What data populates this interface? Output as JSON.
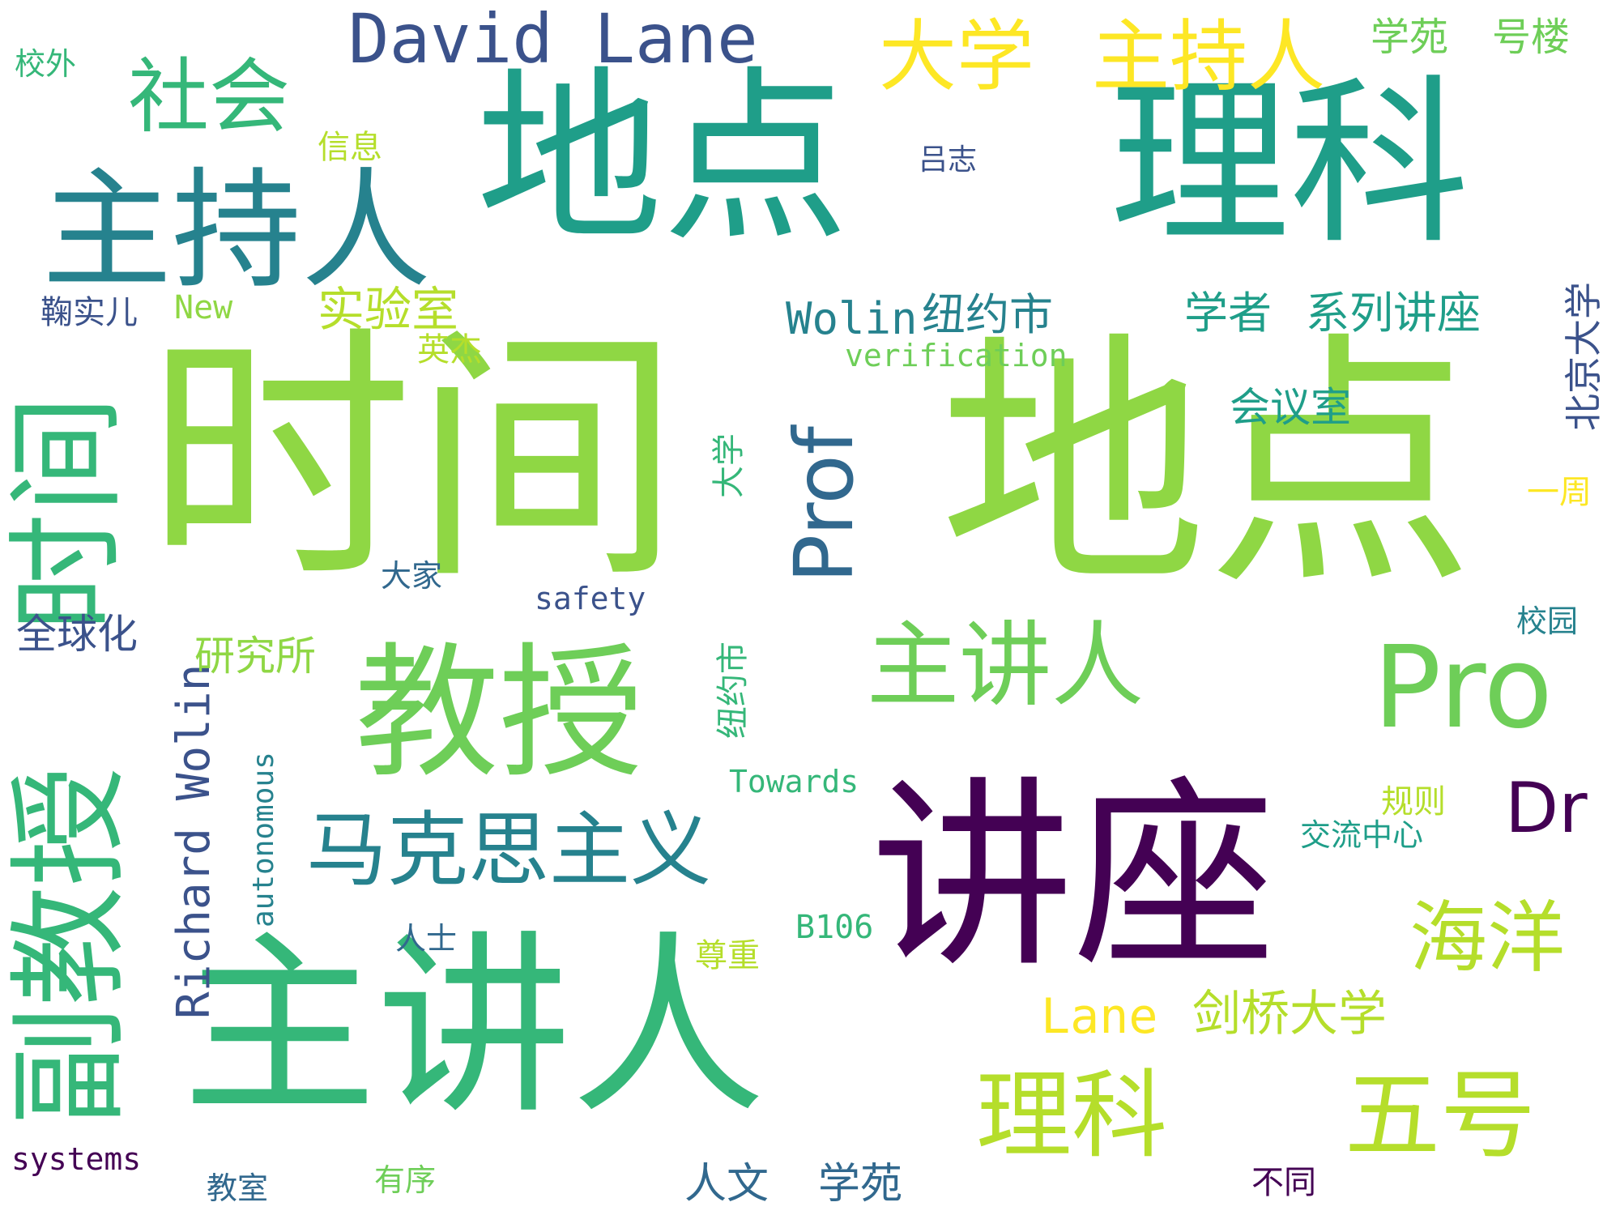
{
  "palette": {
    "dark_purple": "#440154",
    "indigo": "#3b528b",
    "slate_blue": "#31688e",
    "teal_blue": "#26828e",
    "teal": "#1f9e89",
    "sea_green": "#35b779",
    "green": "#6ece58",
    "lime": "#8fd744",
    "yellow_green": "#b5de2b",
    "yellow": "#fde725"
  },
  "words": [
    "地点",
    "理科",
    "时间",
    "地点",
    "主讲人",
    "讲座",
    "教授",
    "主持人",
    "副教授",
    "时间",
    "Pro",
    "Prof",
    "David Lane",
    "社会",
    "大学",
    "主持人",
    "主讲人",
    "马克思主义",
    "理科",
    "五号",
    "海洋",
    "Dr",
    "Lane",
    "剑桥大学",
    "Richard Wolin",
    "Wolin",
    "纽约市",
    "学者",
    "系列讲座",
    "实验室",
    "学苑",
    "号楼",
    "北京大学",
    "会议室",
    "大学",
    "纽约市",
    "校外",
    "信息",
    "吕志",
    "鞠实儿",
    "New",
    "英杰",
    "verification",
    "一周",
    "大家",
    "safety",
    "全球化",
    "研究所",
    "校园",
    "autonomous",
    "Towards",
    "规则",
    "交流中心",
    "人士",
    "B106",
    "尊重",
    "systems",
    "教室",
    "有序",
    "人文",
    "学苑",
    "不同"
  ]
}
